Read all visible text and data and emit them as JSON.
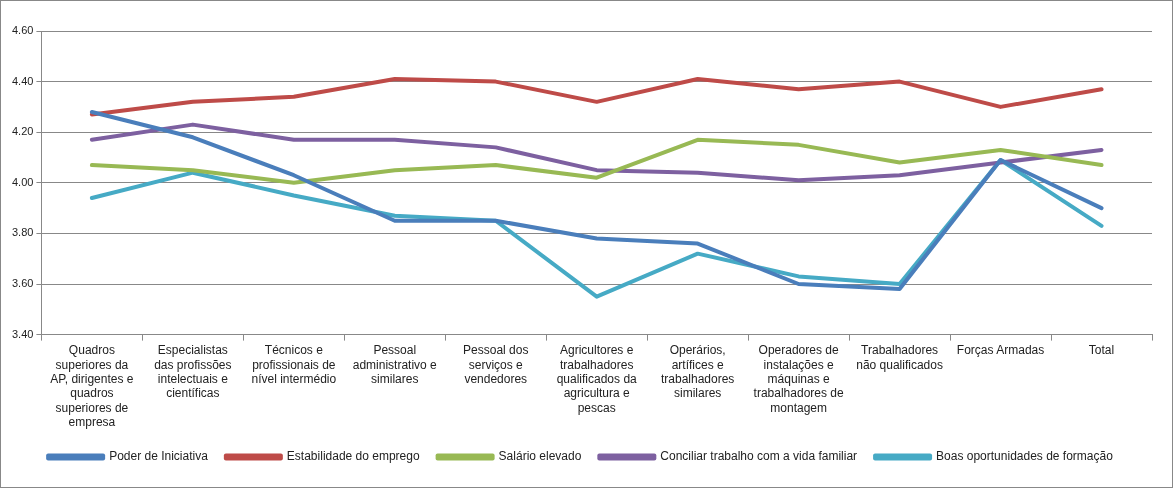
{
  "chart_data": {
    "type": "line",
    "categories": [
      "Quadros superiores da AP, dirigentes e quadros superiores de empresa",
      "Especialistas das profissões intelectuais e científicas",
      "Técnicos e profissionais de nível intermédio",
      "Pessoal administrativo e similares",
      "Pessoal dos serviços e vendedores",
      "Agricultores e trabalhadores qualificados da agricultura e pescas",
      "Operários, artífices e trabalhadores similares",
      "Operadores de instalações e máquinas e trabalhadores de montagem",
      "Trabalhadores não qualificados",
      "Forças Armadas",
      "Total"
    ],
    "series": [
      {
        "name": "Poder de Iniciativa",
        "color": "#4a7ebb",
        "values": [
          4.28,
          4.18,
          4.03,
          3.85,
          3.85,
          3.78,
          3.76,
          3.6,
          3.58,
          4.09,
          3.9
        ]
      },
      {
        "name": "Estabilidade do emprego",
        "color": "#be4b48",
        "values": [
          4.27,
          4.32,
          4.34,
          4.41,
          4.4,
          4.32,
          4.41,
          4.37,
          4.4,
          4.3,
          4.37
        ]
      },
      {
        "name": "Salário elevado",
        "color": "#98b954",
        "values": [
          4.07,
          4.05,
          4.0,
          4.05,
          4.07,
          4.02,
          4.17,
          4.15,
          4.08,
          4.13,
          4.07
        ]
      },
      {
        "name": "Conciliar trabalho com a vida familiar",
        "color": "#7d60a0",
        "values": [
          4.17,
          4.23,
          4.17,
          4.17,
          4.14,
          4.05,
          4.04,
          4.01,
          4.03,
          4.08,
          4.13
        ]
      },
      {
        "name": "Boas oportunidades de formação",
        "color": "#46aac5",
        "values": [
          3.94,
          4.04,
          3.95,
          3.87,
          3.85,
          3.55,
          3.72,
          3.63,
          3.6,
          4.09,
          3.83
        ]
      }
    ],
    "ylim": [
      3.4,
      4.6
    ],
    "yticks": [
      {
        "value": 3.4,
        "label": "3.40"
      },
      {
        "value": 3.6,
        "label": "3.60"
      },
      {
        "value": 3.8,
        "label": "3.80"
      },
      {
        "value": 4.0,
        "label": "4.00"
      },
      {
        "value": 4.2,
        "label": "4.20"
      },
      {
        "value": 4.4,
        "label": "4.40"
      },
      {
        "value": 4.6,
        "label": "4.60"
      }
    ],
    "grid": "y",
    "legend": "bottom",
    "marker": "none",
    "line_style": "solid"
  }
}
